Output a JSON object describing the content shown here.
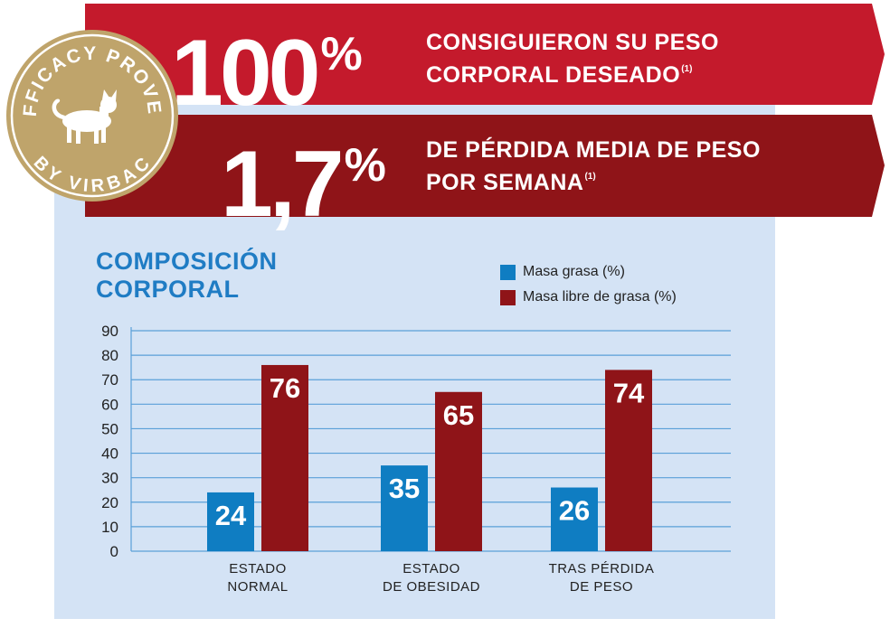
{
  "banners": [
    {
      "figure": "100",
      "unit": "%",
      "line1": "CONSIGUIERON SU PESO",
      "line2": "CORPORAL DESEADO",
      "ref": "(1)",
      "color": "#c41a2c"
    },
    {
      "figure": "1,7",
      "unit": "%",
      "line1": "DE PÉRDIDA MEDIA DE PESO",
      "line2": "POR SEMANA",
      "ref": "(1)",
      "color": "#8f1418"
    }
  ],
  "badge": {
    "top_text": "EFFICACY PROVEN",
    "bottom_text": "BY VIRBAC",
    "icon": "cat-icon",
    "color": "#bfa46b"
  },
  "chart_data": {
    "type": "bar",
    "title": [
      "COMPOSICIÓN",
      "CORPORAL"
    ],
    "categories": [
      [
        "ESTADO",
        "NORMAL"
      ],
      [
        "ESTADO",
        "DE OBESIDAD"
      ],
      [
        "TRAS PÉRDIDA",
        "DE PESO"
      ]
    ],
    "series": [
      {
        "name": "Masa grasa (%)",
        "values": [
          24,
          35,
          26
        ],
        "color": "#0f7dc2"
      },
      {
        "name": "Masa libre de grasa (%)",
        "values": [
          76,
          65,
          74
        ],
        "color": "#8f1418"
      }
    ],
    "ylim": [
      0,
      90
    ],
    "yticks": [
      "0",
      "10",
      "20",
      "30",
      "40",
      "50",
      "60",
      "70",
      "80",
      "90"
    ],
    "grid": true,
    "legend_position": "top-right"
  }
}
